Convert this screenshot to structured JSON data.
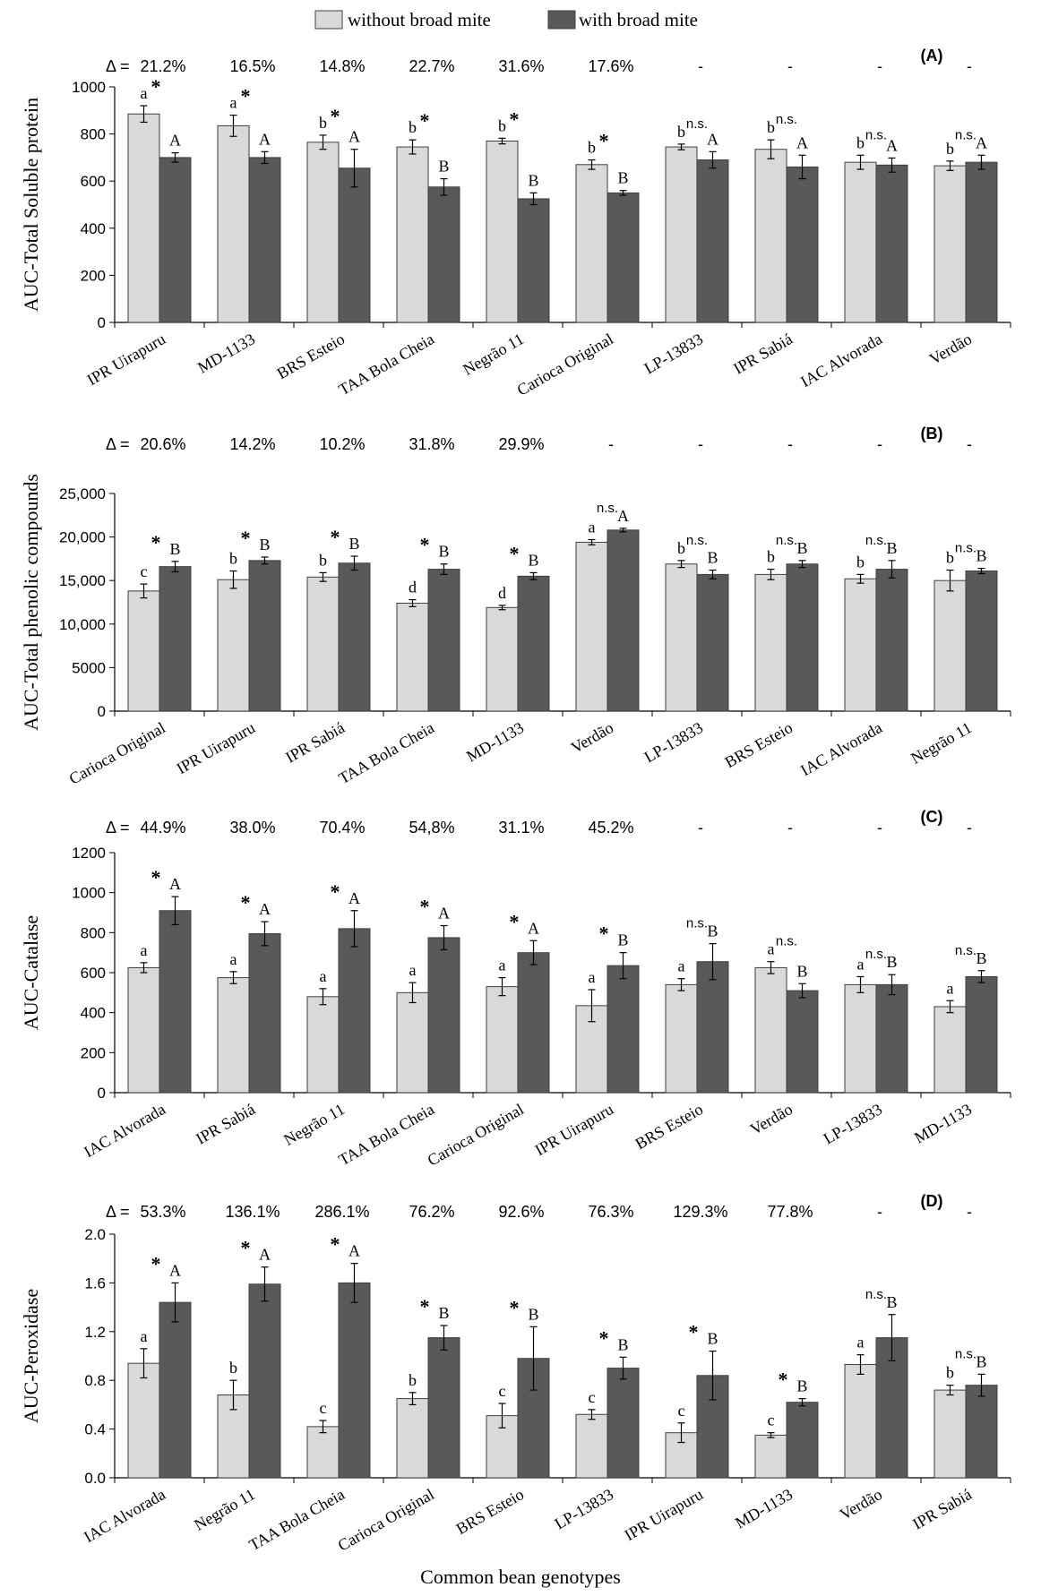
{
  "legend": {
    "without": "without broad mite",
    "with": "with broad mite"
  },
  "x_axis_title": "Common bean genotypes",
  "colors": {
    "without": "#d9d9d9",
    "with": "#595959",
    "edge": "#404040"
  },
  "chart_data": [
    {
      "type": "bar",
      "panel": "(A)",
      "ylabel": "AUC-Total Soluble protein",
      "ylim": [
        0,
        1000
      ],
      "yticks": [
        "0",
        "200",
        "400",
        "600",
        "800",
        "1000"
      ],
      "delta_prefix": "Δ =",
      "categories": [
        "IPR Uirapuru",
        "MD-1133",
        "BRS Esteio",
        "TAA Bola Cheia",
        "Negrão 11",
        "Carioca Original",
        "LP-13833",
        "IPR Sabiá",
        "IAC Alvorada",
        "Verdão"
      ],
      "delta": [
        "21.2%",
        "16.5%",
        "14.8%",
        "22.7%",
        "31.6%",
        "17.6%",
        "-",
        "-",
        "-",
        "-"
      ],
      "sig": [
        "*",
        "*",
        "*",
        "*",
        "*",
        "*",
        "n.s.",
        "n.s.",
        "n.s.",
        "n.s."
      ],
      "series": [
        {
          "name": "without broad mite",
          "values": [
            885,
            835,
            765,
            745,
            770,
            670,
            745,
            735,
            680,
            665
          ],
          "errors": [
            35,
            45,
            30,
            30,
            12,
            20,
            12,
            40,
            30,
            20
          ],
          "letters": [
            "a",
            "a",
            "b",
            "b",
            "b",
            "b",
            "b",
            "b",
            "b",
            "b"
          ]
        },
        {
          "name": "with broad mite",
          "values": [
            700,
            700,
            655,
            575,
            525,
            550,
            690,
            660,
            668,
            680
          ],
          "errors": [
            20,
            25,
            80,
            35,
            25,
            10,
            35,
            50,
            30,
            30
          ],
          "letters": [
            "A",
            "A",
            "A",
            "B",
            "B",
            "B",
            "A",
            "A",
            "A",
            "A"
          ]
        }
      ]
    },
    {
      "type": "bar",
      "panel": "(B)",
      "ylabel": "AUC-Total phenolic compounds",
      "ylim": [
        0,
        25000
      ],
      "yticks": [
        "0",
        "5000",
        "10,000",
        "15,000",
        "20,000",
        "25,000"
      ],
      "delta_prefix": "Δ =",
      "categories": [
        "Carioca Original",
        "IPR Uirapuru",
        "IPR Sabiá",
        "TAA Bola Cheia",
        "MD-1133",
        "Verdão",
        "LP-13833",
        "BRS Esteio",
        "IAC Alvorada",
        "Negrão 11"
      ],
      "delta": [
        "20.6%",
        "14.2%",
        "10.2%",
        "31.8%",
        "29.9%",
        "-",
        "-",
        "-",
        "-",
        "-"
      ],
      "sig": [
        "*",
        "*",
        "*",
        "*",
        "*",
        "n.s.",
        "n.s.",
        "n.s.",
        "n.s.",
        "n.s."
      ],
      "series": [
        {
          "name": "without broad mite",
          "values": [
            13800,
            15100,
            15400,
            12400,
            11900,
            19400,
            16900,
            15700,
            15200,
            15000
          ],
          "errors": [
            800,
            1000,
            500,
            400,
            250,
            300,
            400,
            600,
            500,
            1200
          ],
          "letters": [
            "c",
            "b",
            "b",
            "d",
            "d",
            "a",
            "b",
            "b",
            "b",
            "b"
          ]
        },
        {
          "name": "with broad mite",
          "values": [
            16600,
            17300,
            17000,
            16300,
            15500,
            20800,
            15700,
            16900,
            16300,
            16100
          ],
          "errors": [
            600,
            400,
            800,
            600,
            400,
            200,
            500,
            400,
            1000,
            300
          ],
          "letters": [
            "B",
            "B",
            "B",
            "B",
            "B",
            "A",
            "B",
            "B",
            "B",
            "B"
          ]
        }
      ]
    },
    {
      "type": "bar",
      "panel": "(C)",
      "ylabel": "AUC-Catalase",
      "ylim": [
        0,
        1200
      ],
      "yticks": [
        "0",
        "200",
        "400",
        "600",
        "800",
        "1000",
        "1200"
      ],
      "delta_prefix": "Δ =",
      "categories": [
        "IAC Alvorada",
        "IPR Sabiá",
        "Negrão 11",
        "TAA Bola Cheia",
        "Carioca Original",
        "IPR Uirapuru",
        "BRS Esteio",
        "Verdão",
        "LP-13833",
        "MD-1133"
      ],
      "delta": [
        "44.9%",
        "38.0%",
        "70.4%",
        "54,8%",
        "31.1%",
        "45.2%",
        "-",
        "-",
        "-",
        "-"
      ],
      "sig": [
        "*",
        "*",
        "*",
        "*",
        "*",
        "*",
        "n.s.",
        "n.s.",
        "n.s.",
        "n.s."
      ],
      "series": [
        {
          "name": "without broad mite",
          "values": [
            625,
            575,
            480,
            500,
            530,
            435,
            540,
            625,
            540,
            430
          ],
          "errors": [
            25,
            30,
            40,
            50,
            45,
            80,
            30,
            30,
            40,
            30
          ],
          "letters": [
            "a",
            "a",
            "a",
            "a",
            "a",
            "a",
            "a",
            "a",
            "a",
            "a"
          ]
        },
        {
          "name": "with broad mite",
          "values": [
            910,
            795,
            820,
            775,
            700,
            635,
            655,
            510,
            540,
            580
          ],
          "errors": [
            70,
            60,
            90,
            60,
            60,
            65,
            90,
            35,
            50,
            30
          ],
          "letters": [
            "A",
            "A",
            "A",
            "A",
            "A",
            "B",
            "B",
            "B",
            "B",
            "B"
          ]
        }
      ]
    },
    {
      "type": "bar",
      "panel": "(D)",
      "ylabel": "AUC-Peroxidase",
      "ylim": [
        0,
        2.0
      ],
      "yticks": [
        "0.0",
        "0.4",
        "0.8",
        "1.2",
        "1.6",
        "2.0"
      ],
      "delta_prefix": "Δ =",
      "categories": [
        "IAC Alvorada",
        "Negrão 11",
        "TAA Bola Cheia",
        "Carioca Original",
        "BRS Esteio",
        "LP-13833",
        "IPR Uirapuru",
        "MD-1133",
        "Verdão",
        "IPR Sabiá"
      ],
      "delta": [
        "53.3%",
        "136.1%",
        "286.1%",
        "76.2%",
        "92.6%",
        "76.3%",
        "129.3%",
        "77.8%",
        "-",
        "-"
      ],
      "sig": [
        "*",
        "*",
        "*",
        "*",
        "*",
        "*",
        "*",
        "*",
        "n.s.",
        "n.s."
      ],
      "series": [
        {
          "name": "without broad mite",
          "values": [
            0.94,
            0.68,
            0.42,
            0.65,
            0.51,
            0.52,
            0.37,
            0.35,
            0.93,
            0.72
          ],
          "errors": [
            0.12,
            0.12,
            0.05,
            0.05,
            0.1,
            0.04,
            0.08,
            0.02,
            0.08,
            0.04
          ],
          "letters": [
            "a",
            "b",
            "c",
            "b",
            "c",
            "c",
            "c",
            "c",
            "a",
            "b"
          ]
        },
        {
          "name": "with broad mite",
          "values": [
            1.44,
            1.59,
            1.6,
            1.15,
            0.98,
            0.9,
            0.84,
            0.62,
            1.15,
            0.76
          ],
          "errors": [
            0.16,
            0.14,
            0.16,
            0.1,
            0.26,
            0.09,
            0.2,
            0.03,
            0.19,
            0.09
          ],
          "letters": [
            "A",
            "A",
            "A",
            "B",
            "B",
            "B",
            "B",
            "B",
            "B",
            "B"
          ]
        }
      ]
    }
  ]
}
